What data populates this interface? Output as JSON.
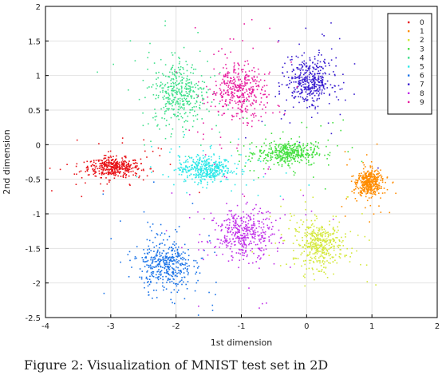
{
  "caption": "Figure 2: Visualization of MNIST test set in 2D",
  "chart_data": {
    "type": "scatter",
    "title": "",
    "xlabel": "1st dimension",
    "ylabel": "2nd dimension",
    "xlim": [
      -4,
      2
    ],
    "ylim": [
      -2.5,
      2
    ],
    "xticks": [
      -4,
      -3,
      -2,
      -1,
      0,
      1,
      2
    ],
    "yticks": [
      -2.5,
      -2,
      -1.5,
      -1,
      -0.5,
      0,
      0.5,
      1,
      1.5,
      2
    ],
    "xtick_labels": [
      "-4",
      "-3",
      "-2",
      "-1",
      "0",
      "1",
      "2"
    ],
    "ytick_labels": [
      "-2.5",
      "-2",
      "-1.5",
      "-1",
      "-0.5",
      "0",
      "0.5",
      "1",
      "1.5",
      "2"
    ],
    "grid": true,
    "legend_position": "top-right",
    "series": [
      {
        "name": "0",
        "color": "#e8141a",
        "center": [
          -2.95,
          -0.33
        ],
        "spread": [
          0.2,
          0.07
        ]
      },
      {
        "name": "1",
        "color": "#ff8c00",
        "center": [
          0.95,
          -0.55
        ],
        "spread": [
          0.09,
          0.09
        ]
      },
      {
        "name": "2",
        "color": "#d4e83a",
        "center": [
          0.2,
          -1.45
        ],
        "spread": [
          0.18,
          0.16
        ]
      },
      {
        "name": "3",
        "color": "#44e040",
        "center": [
          -0.3,
          -0.12
        ],
        "spread": [
          0.22,
          0.08
        ]
      },
      {
        "name": "4",
        "color": "#3ee08a",
        "center": [
          -1.95,
          0.75
        ],
        "spread": [
          0.2,
          0.22
        ]
      },
      {
        "name": "5",
        "color": "#2ee8e8",
        "center": [
          -1.55,
          -0.35
        ],
        "spread": [
          0.2,
          0.09
        ]
      },
      {
        "name": "6",
        "color": "#1a73e8",
        "center": [
          -2.15,
          -1.75
        ],
        "spread": [
          0.2,
          0.18
        ]
      },
      {
        "name": "7",
        "color": "#3a1fd0",
        "center": [
          0.05,
          0.92
        ],
        "spread": [
          0.17,
          0.16
        ]
      },
      {
        "name": "8",
        "color": "#c02ee8",
        "center": [
          -0.95,
          -1.3
        ],
        "spread": [
          0.22,
          0.17
        ]
      },
      {
        "name": "9",
        "color": "#e81fa0",
        "center": [
          -1.05,
          0.78
        ],
        "spread": [
          0.2,
          0.2
        ]
      }
    ]
  }
}
